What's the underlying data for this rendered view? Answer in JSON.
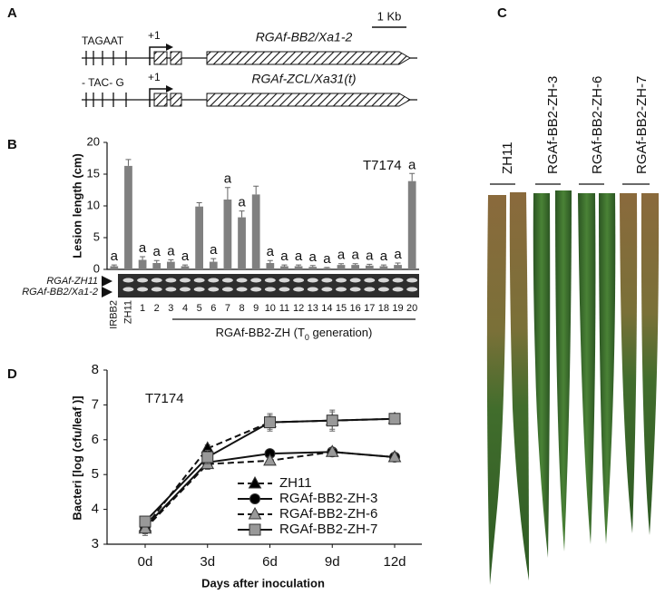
{
  "panel_labels": [
    "A",
    "B",
    "C",
    "D"
  ],
  "gene_diagram": {
    "scale_bar": "1 Kb",
    "genes": [
      {
        "name": "RGAf-BB2/Xa1-2",
        "promoter": "TAGAAT",
        "tss": "+1"
      },
      {
        "name": "RGAf-ZCL/Xa31(t)",
        "promoter": "- TAC- G",
        "tss": "+1"
      }
    ]
  },
  "leaf_photo": {
    "labels": [
      "ZH11",
      "RGAf-BB2-ZH-3",
      "RGAf-BB2-ZH-6",
      "RGAf-BB2-ZH-7"
    ]
  },
  "chart_data": [
    {
      "type": "bar",
      "y_label": "Lesion length (cm)",
      "annotation": "T7174",
      "categories": [
        "IRBB2",
        "ZH11",
        "1",
        "2",
        "3",
        "4",
        "5",
        "6",
        "7",
        "8",
        "9",
        "10",
        "11",
        "12",
        "13",
        "14",
        "15",
        "16",
        "17",
        "18",
        "19",
        "20"
      ],
      "values": [
        0.5,
        16.3,
        1.5,
        1.0,
        1.2,
        0.5,
        9.9,
        1.2,
        11.0,
        8.2,
        11.8,
        1.0,
        0.5,
        0.5,
        0.4,
        0.2,
        0.7,
        0.7,
        0.6,
        0.5,
        0.7,
        13.9
      ],
      "errors": [
        0.2,
        1.0,
        0.5,
        0.4,
        0.3,
        0.2,
        0.6,
        0.5,
        1.9,
        1.0,
        1.3,
        0.4,
        0.2,
        0.2,
        0.2,
        0.1,
        0.2,
        0.2,
        0.2,
        0.2,
        0.3,
        1.2
      ],
      "significance": [
        "a",
        null,
        "a",
        "a",
        "a",
        "a",
        null,
        "a",
        "a",
        "a",
        null,
        "a",
        "a",
        "a",
        "a",
        "a",
        "a",
        "a",
        "a",
        "a",
        "a",
        "a"
      ],
      "color": "#808080",
      "ylim": [
        0,
        20
      ],
      "yticks": [
        0,
        5,
        10,
        15,
        20
      ],
      "gel_labels": [
        "RGAf-ZH11",
        "RGAf-BB2/Xa1-2"
      ],
      "x_label": "RGAf-BB2-ZH (T",
      "x_label_subscript": "0",
      "x_label_end": " generation)"
    },
    {
      "type": "line",
      "y_label": "Bacteri [log (cfu/leaf )]",
      "x_label": "Days after inoculation",
      "annotation": "T7174",
      "categories": [
        "0d",
        "3d",
        "6d",
        "9d",
        "12d"
      ],
      "ylim": [
        3,
        8
      ],
      "yticks": [
        3,
        4,
        5,
        6,
        7,
        8
      ],
      "legend": "lower right",
      "series": [
        {
          "name": "ZH11",
          "color": "#000000",
          "marker": "triangle",
          "dashed": true,
          "values": [
            3.5,
            5.75,
            6.5,
            6.55,
            6.6
          ],
          "errors": [
            0.2,
            0.1,
            0.2,
            0.25,
            0.15
          ]
        },
        {
          "name": "RGAf-BB2-ZH-3",
          "color": "#000000",
          "marker": "circle",
          "dashed": false,
          "values": [
            3.5,
            5.35,
            5.6,
            5.65,
            5.5
          ],
          "errors": [
            0.2,
            0.15,
            0.1,
            0.1,
            0.1
          ]
        },
        {
          "name": "RGAf-BB2-ZH-6",
          "color": "#999999",
          "marker": "triangle",
          "dashed": true,
          "values": [
            3.45,
            5.3,
            5.4,
            5.65,
            5.5
          ],
          "errors": [
            0.2,
            0.15,
            0.1,
            0.1,
            0.1
          ]
        },
        {
          "name": "RGAf-BB2-ZH-7",
          "color": "#999999",
          "marker": "square",
          "dashed": false,
          "values": [
            3.65,
            5.5,
            6.5,
            6.55,
            6.6
          ],
          "errors": [
            0.15,
            0.2,
            0.25,
            0.3,
            0.15
          ]
        }
      ]
    }
  ]
}
